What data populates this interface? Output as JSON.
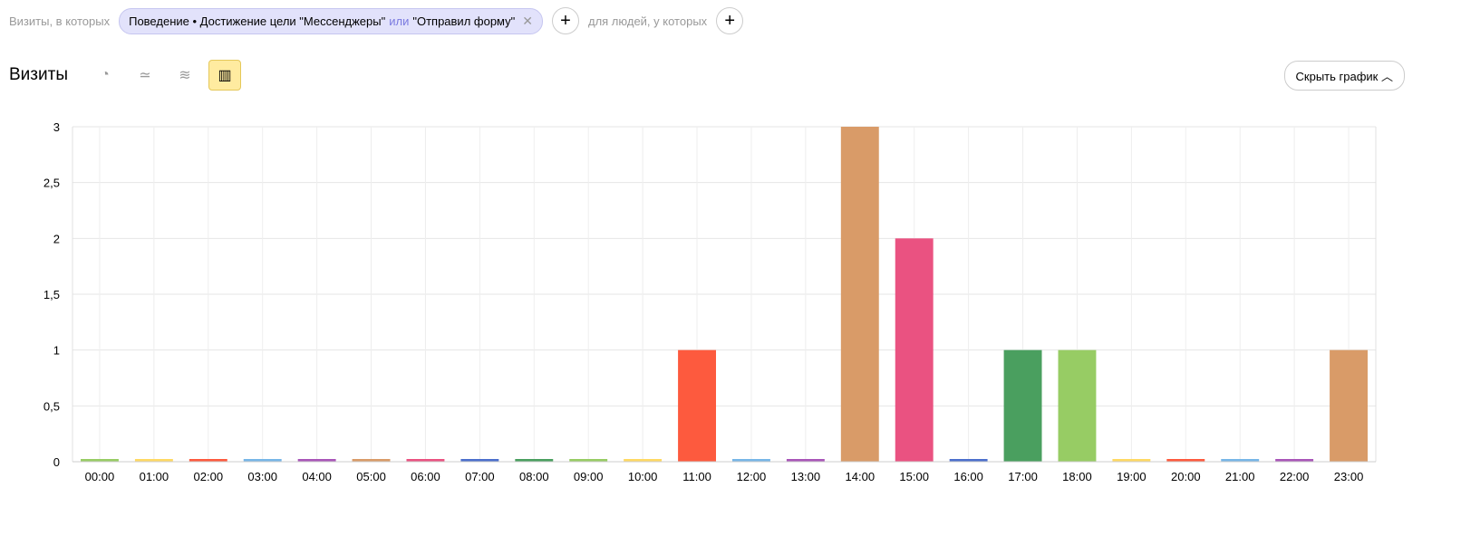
{
  "filters": {
    "prefix": "Визиты, в которых",
    "chip_part1": "Поведение • Достижение цели \"Мессенджеры\"",
    "chip_or": "или",
    "chip_part2": "\"Отправил форму\"",
    "people": "для людей, у которых"
  },
  "header": {
    "title": "Визиты",
    "hide_button": "Скрыть график"
  },
  "chart_icons": [
    "pie-chart-icon",
    "line-chart-icon",
    "area-chart-icon",
    "bar-chart-icon"
  ],
  "active_chart": "bar-chart-icon",
  "chart_data": {
    "type": "bar",
    "categories": [
      "00:00",
      "01:00",
      "02:00",
      "03:00",
      "04:00",
      "05:00",
      "06:00",
      "07:00",
      "08:00",
      "09:00",
      "10:00",
      "11:00",
      "12:00",
      "13:00",
      "14:00",
      "15:00",
      "16:00",
      "17:00",
      "18:00",
      "19:00",
      "20:00",
      "21:00",
      "22:00",
      "23:00"
    ],
    "values": [
      0,
      0,
      0,
      0,
      0,
      0,
      0,
      0,
      0,
      0,
      0,
      1,
      0,
      0,
      3,
      2,
      0,
      1,
      1,
      0,
      0,
      0,
      0,
      1
    ],
    "ylim": [
      0,
      3
    ],
    "yticks": [
      "0",
      "0,5",
      "1",
      "1,5",
      "2",
      "2,5",
      "3"
    ],
    "grid": true,
    "palette": [
      "#97cc64",
      "#ffd963",
      "#fd5a3e",
      "#77b6e7",
      "#a955b8",
      "#d99b68",
      "#ea5281",
      "#4c6fcc",
      "#4a9f5f"
    ]
  }
}
